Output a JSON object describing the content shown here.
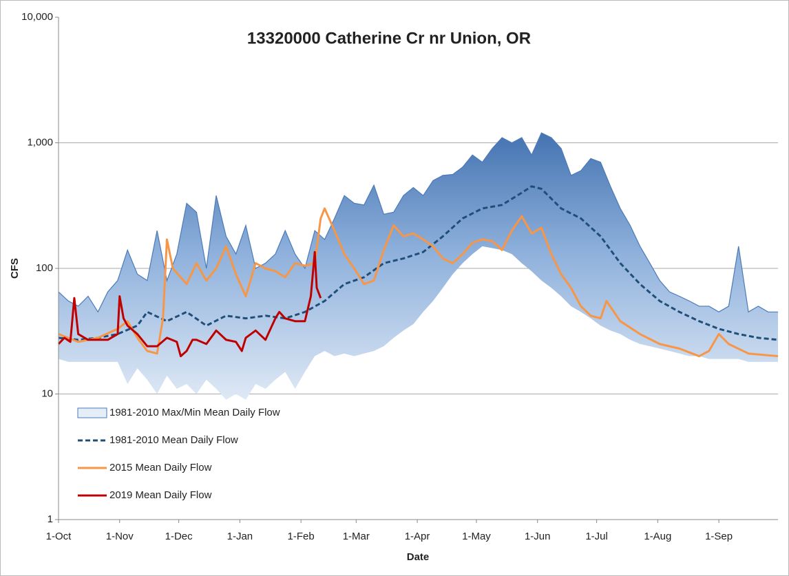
{
  "chart_data": {
    "type": "line",
    "title": "13320000  Catherine Cr nr Union, OR",
    "x_label": "Date",
    "y_label": "CFS",
    "xlim": [
      0,
      365
    ],
    "xticks": [
      {
        "value": 0,
        "label": "1-Oct"
      },
      {
        "value": 31,
        "label": "1-Nov"
      },
      {
        "value": 61,
        "label": "1-Dec"
      },
      {
        "value": 92,
        "label": "1-Jan"
      },
      {
        "value": 123,
        "label": "1-Feb"
      },
      {
        "value": 151,
        "label": "1-Mar"
      },
      {
        "value": 182,
        "label": "1-Apr"
      },
      {
        "value": 212,
        "label": "1-May"
      },
      {
        "value": 243,
        "label": "1-Jun"
      },
      {
        "value": 273,
        "label": "1-Jul"
      },
      {
        "value": 304,
        "label": "1-Aug"
      },
      {
        "value": 335,
        "label": "1-Sep"
      }
    ],
    "ylim": [
      1,
      10000
    ],
    "y_log": true,
    "yticks": [
      1,
      10,
      100,
      {
        "value": 1000,
        "label": "1,000"
      },
      {
        "value": 10000,
        "label": "10,000"
      }
    ],
    "grid": true,
    "legend": "left",
    "band": {
      "name": "1981-2010 Max/Min Mean Daily Flow",
      "color": "#4a7ab8",
      "x": [
        0,
        5,
        10,
        15,
        20,
        25,
        30,
        35,
        40,
        45,
        50,
        55,
        60,
        65,
        70,
        75,
        80,
        85,
        90,
        95,
        100,
        105,
        110,
        115,
        120,
        125,
        130,
        135,
        140,
        145,
        150,
        155,
        160,
        165,
        170,
        175,
        180,
        185,
        190,
        195,
        200,
        205,
        210,
        215,
        220,
        225,
        230,
        235,
        240,
        245,
        250,
        255,
        260,
        265,
        270,
        275,
        280,
        285,
        290,
        295,
        300,
        305,
        310,
        315,
        320,
        325,
        330,
        335,
        340,
        345,
        350,
        355,
        360,
        365
      ],
      "upper": [
        65,
        55,
        50,
        60,
        45,
        65,
        80,
        140,
        90,
        80,
        200,
        80,
        130,
        330,
        280,
        100,
        380,
        180,
        130,
        220,
        100,
        110,
        130,
        200,
        130,
        100,
        200,
        170,
        250,
        380,
        330,
        320,
        460,
        270,
        280,
        380,
        440,
        380,
        500,
        550,
        560,
        640,
        800,
        700,
        900,
        1100,
        1000,
        1100,
        800,
        1200,
        1100,
        900,
        550,
        600,
        750,
        700,
        450,
        300,
        220,
        150,
        110,
        80,
        65,
        60,
        55,
        50,
        50,
        45,
        50,
        150,
        45,
        50,
        45,
        45
      ],
      "lower": [
        19,
        18,
        18,
        18,
        18,
        18,
        18,
        12,
        16,
        13,
        10,
        14,
        11,
        12,
        10,
        13,
        11,
        9,
        10,
        9,
        12,
        11,
        13,
        15,
        11,
        15,
        20,
        22,
        20,
        21,
        20,
        21,
        22,
        24,
        28,
        32,
        36,
        45,
        55,
        70,
        90,
        110,
        130,
        150,
        145,
        140,
        130,
        110,
        95,
        80,
        70,
        60,
        50,
        45,
        40,
        35,
        32,
        30,
        27,
        25,
        24,
        23,
        22,
        21,
        20,
        20,
        19,
        19,
        19,
        19,
        18,
        18,
        18,
        18
      ]
    },
    "series": [
      {
        "name": "1981-2010 Mean Daily Flow",
        "color": "#1f4e79",
        "dashed": true,
        "x": [
          0,
          10,
          20,
          30,
          40,
          45,
          55,
          65,
          75,
          85,
          95,
          105,
          115,
          125,
          135,
          145,
          155,
          165,
          175,
          185,
          195,
          205,
          215,
          225,
          235,
          240,
          245,
          255,
          265,
          275,
          285,
          295,
          305,
          315,
          325,
          335,
          345,
          355,
          365
        ],
        "values": [
          28,
          27,
          28,
          30,
          35,
          45,
          38,
          45,
          35,
          42,
          40,
          42,
          40,
          45,
          55,
          75,
          85,
          110,
          120,
          135,
          180,
          250,
          300,
          320,
          400,
          450,
          430,
          300,
          250,
          180,
          110,
          75,
          55,
          45,
          38,
          33,
          30,
          28,
          27
        ]
      },
      {
        "name": "2015 Mean Daily Flow",
        "color": "#f79646",
        "dashed": false,
        "x": [
          0,
          10,
          20,
          30,
          35,
          40,
          45,
          50,
          53,
          55,
          58,
          65,
          70,
          75,
          80,
          85,
          90,
          95,
          100,
          105,
          110,
          115,
          120,
          125,
          130,
          133,
          135,
          140,
          145,
          150,
          155,
          160,
          165,
          170,
          175,
          180,
          185,
          190,
          195,
          200,
          205,
          210,
          215,
          220,
          225,
          230,
          235,
          240,
          245,
          250,
          255,
          260,
          265,
          270,
          275,
          278,
          285,
          295,
          305,
          315,
          325,
          330,
          335,
          340,
          350,
          365
        ],
        "values": [
          30,
          26,
          28,
          33,
          38,
          28,
          22,
          21,
          40,
          170,
          100,
          75,
          110,
          80,
          100,
          150,
          90,
          60,
          110,
          100,
          95,
          85,
          110,
          105,
          110,
          250,
          300,
          200,
          130,
          100,
          75,
          80,
          140,
          220,
          180,
          190,
          170,
          150,
          120,
          110,
          130,
          160,
          170,
          165,
          140,
          200,
          260,
          190,
          210,
          130,
          90,
          70,
          50,
          42,
          40,
          55,
          38,
          30,
          25,
          23,
          20,
          22,
          30,
          25,
          21,
          20
        ]
      },
      {
        "name": "2019 Mean Daily Flow",
        "color": "#c00000",
        "dashed": false,
        "x": [
          0,
          3,
          6,
          8,
          10,
          15,
          25,
          30,
          31,
          33,
          35,
          40,
          45,
          50,
          55,
          60,
          62,
          65,
          68,
          70,
          75,
          80,
          85,
          90,
          93,
          95,
          100,
          105,
          110,
          112,
          115,
          120,
          125,
          128,
          130,
          131,
          133
        ],
        "values": [
          25,
          28,
          26,
          58,
          30,
          27,
          27,
          30,
          60,
          40,
          35,
          30,
          24,
          24,
          28,
          26,
          20,
          22,
          27,
          27,
          25,
          32,
          27,
          26,
          22,
          28,
          32,
          27,
          40,
          45,
          40,
          38,
          38,
          60,
          135,
          70,
          58
        ]
      }
    ]
  }
}
